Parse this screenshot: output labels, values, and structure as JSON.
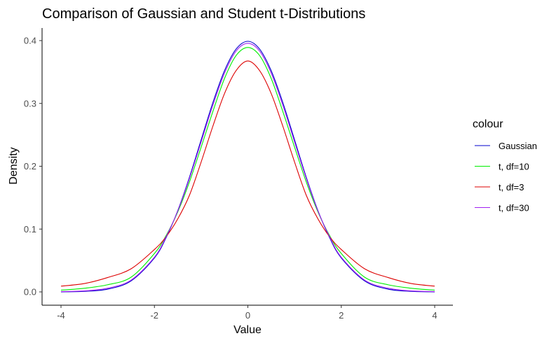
{
  "chart_data": {
    "type": "line",
    "title": "Comparison of Gaussian and Student t-Distributions",
    "xlabel": "Value",
    "ylabel": "Density",
    "xlim": [
      -4,
      4
    ],
    "ylim": [
      0,
      0.4
    ],
    "xticks": [
      -4,
      -2,
      0,
      2,
      4
    ],
    "xtick_labels": [
      "-4",
      "-2",
      "0",
      "2",
      "4"
    ],
    "yticks": [
      0.0,
      0.1,
      0.2,
      0.3,
      0.4
    ],
    "ytick_labels": [
      "0.0",
      "0.1",
      "0.2",
      "0.3",
      "0.4"
    ],
    "grid": false,
    "legend": {
      "title": "colour",
      "position": "right",
      "entries": [
        "Gaussian",
        "t, df=10",
        "t, df=3",
        "t, df=30"
      ]
    },
    "x": [
      -4,
      -3.5,
      -3,
      -2.5,
      -2,
      -1.75,
      -1.5,
      -1.25,
      -1,
      -0.75,
      -0.5,
      -0.25,
      0,
      0.25,
      0.5,
      0.75,
      1,
      1.25,
      1.5,
      1.75,
      2,
      2.5,
      3,
      3.5,
      4
    ],
    "series": [
      {
        "name": "Gaussian",
        "color": "#0000cd",
        "values": [
          0.0001,
          0.0009,
          0.0044,
          0.0175,
          0.054,
          0.0863,
          0.1295,
          0.1826,
          0.242,
          0.3011,
          0.3521,
          0.3867,
          0.3989,
          0.3867,
          0.3521,
          0.3011,
          0.242,
          0.1826,
          0.1295,
          0.0863,
          0.054,
          0.0175,
          0.0044,
          0.0009,
          0.0001
        ]
      },
      {
        "name": "t, df=10",
        "color": "#00ee00",
        "values": [
          0.0028,
          0.0058,
          0.0114,
          0.0234,
          0.0611,
          0.0896,
          0.1274,
          0.1751,
          0.2304,
          0.2868,
          0.3397,
          0.3764,
          0.3891,
          0.3764,
          0.3397,
          0.2868,
          0.2304,
          0.1751,
          0.1274,
          0.0896,
          0.0611,
          0.0234,
          0.0114,
          0.0058,
          0.0028
        ]
      },
      {
        "name": "t, df=3",
        "color": "#dd0000",
        "values": [
          0.0092,
          0.0133,
          0.0229,
          0.0368,
          0.0675,
          0.0878,
          0.1163,
          0.1539,
          0.2067,
          0.2635,
          0.3157,
          0.3524,
          0.3676,
          0.3524,
          0.3157,
          0.2635,
          0.2067,
          0.1539,
          0.1163,
          0.0878,
          0.0675,
          0.0368,
          0.0229,
          0.0133,
          0.0092
        ]
      },
      {
        "name": "t, df=30",
        "color": "#a020f0",
        "values": [
          0.0005,
          0.0016,
          0.0059,
          0.0187,
          0.0552,
          0.0877,
          0.1289,
          0.1806,
          0.2386,
          0.2968,
          0.3481,
          0.3835,
          0.3956,
          0.3835,
          0.3481,
          0.2968,
          0.2386,
          0.1806,
          0.1289,
          0.0877,
          0.0552,
          0.0187,
          0.0059,
          0.0016,
          0.0005
        ]
      }
    ]
  }
}
